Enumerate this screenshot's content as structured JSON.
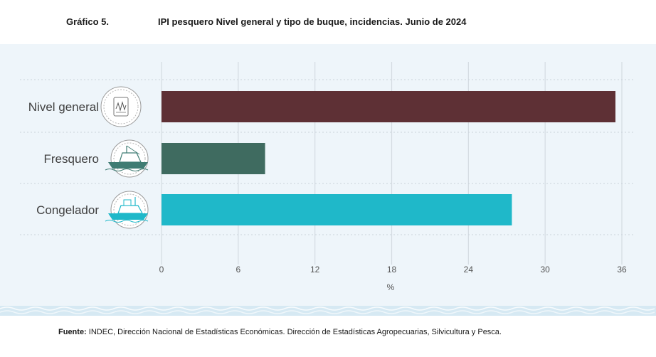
{
  "header": {
    "figure_number": "Gráfico 5.",
    "title": "IPI pesquero Nivel general y tipo de buque, incidencias. Junio de 2024"
  },
  "chart_data": {
    "type": "bar",
    "orientation": "horizontal",
    "categories": [
      "Nivel general",
      "Fresquero",
      "Congelador"
    ],
    "values": [
      35.5,
      8.1,
      27.4
    ],
    "colors": [
      "#5e3035",
      "#3f6b60",
      "#1fb8c9"
    ],
    "category_icons": [
      "index-chart-icon",
      "fresh-fish-vessel-icon",
      "freezer-vessel-icon"
    ],
    "xlabel": "%",
    "xlim": [
      0,
      36
    ],
    "xticks": [
      0,
      6,
      12,
      18,
      24,
      30,
      36
    ],
    "grid": true
  },
  "footer": {
    "source_label": "Fuente:",
    "source_text": " INDEC, Dirección Nacional de Estadísticas Económicas. Dirección de Estadísticas Agropecuarias, Silvicultura y Pesca."
  }
}
